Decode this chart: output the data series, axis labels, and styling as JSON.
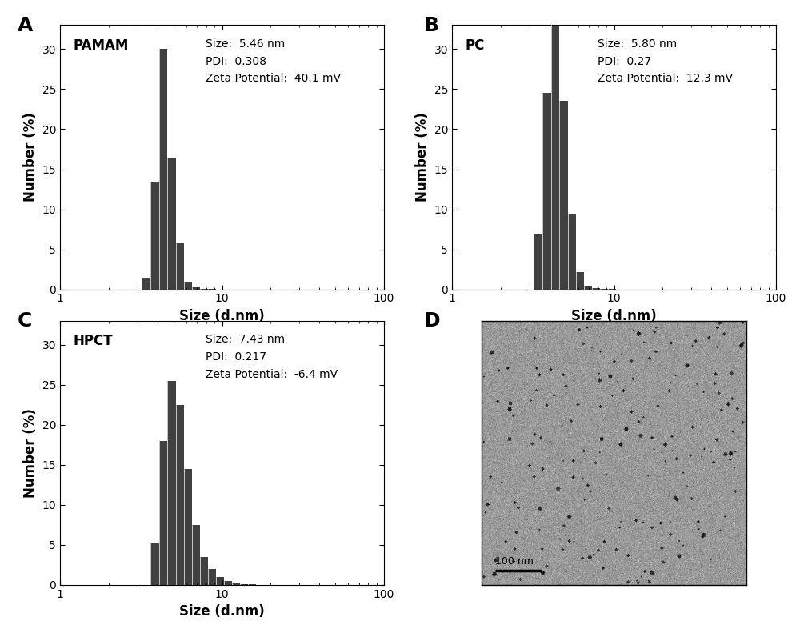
{
  "panel_A": {
    "label": "A",
    "title": "PAMAM",
    "size": "5.46 nm",
    "pdi": "0.308",
    "zeta": "40.1 mV",
    "bar_lefts": [
      3.2,
      3.6,
      4.1,
      4.6,
      5.2,
      5.8,
      6.5,
      7.3,
      8.2
    ],
    "bar_rights": [
      3.6,
      4.1,
      4.6,
      5.2,
      5.8,
      6.5,
      7.3,
      8.2,
      9.2
    ],
    "bar_heights": [
      1.5,
      13.5,
      30.0,
      16.5,
      5.8,
      1.0,
      0.3,
      0.1,
      0.05
    ],
    "bar_color": "#404040",
    "xlim": [
      1,
      100
    ],
    "ylim": [
      0,
      33
    ],
    "yticks": [
      0,
      5,
      10,
      15,
      20,
      25,
      30
    ],
    "xticks": [
      1,
      10,
      100
    ],
    "xlabel": "Size (d.nm)",
    "ylabel": "Number (%)"
  },
  "panel_B": {
    "label": "B",
    "title": "PC",
    "size": "5.80 nm",
    "pdi": "0.27",
    "zeta": "12.3 mV",
    "bar_lefts": [
      3.2,
      3.6,
      4.1,
      4.6,
      5.2,
      5.8,
      6.5,
      7.3,
      8.2,
      9.2
    ],
    "bar_rights": [
      3.6,
      4.1,
      4.6,
      5.2,
      5.8,
      6.5,
      7.3,
      8.2,
      9.2,
      10.3
    ],
    "bar_heights": [
      7.0,
      24.5,
      33.0,
      23.5,
      9.5,
      2.2,
      0.5,
      0.2,
      0.1,
      0.02
    ],
    "bar_color": "#404040",
    "xlim": [
      1,
      100
    ],
    "ylim": [
      0,
      33
    ],
    "yticks": [
      0,
      5,
      10,
      15,
      20,
      25,
      30
    ],
    "xticks": [
      1,
      10,
      100
    ],
    "xlabel": "Size (d.nm)",
    "ylabel": "Number (%)"
  },
  "panel_C": {
    "label": "C",
    "title": "HPCT",
    "size": "7.43 nm",
    "pdi": "0.217",
    "zeta": "-6.4 mV",
    "bar_lefts": [
      3.6,
      4.1,
      4.6,
      5.2,
      5.8,
      6.5,
      7.3,
      8.2,
      9.2,
      10.3,
      11.5,
      12.9,
      14.5,
      16.2,
      18.2,
      20.4
    ],
    "bar_rights": [
      4.1,
      4.6,
      5.2,
      5.8,
      6.5,
      7.3,
      8.2,
      9.2,
      10.3,
      11.5,
      12.9,
      14.5,
      16.2,
      18.2,
      20.4,
      22.9
    ],
    "bar_heights": [
      5.2,
      18.0,
      25.5,
      22.5,
      14.5,
      7.5,
      3.5,
      2.0,
      1.0,
      0.5,
      0.2,
      0.1,
      0.05,
      0.02,
      0.01,
      0.005
    ],
    "bar_color": "#404040",
    "xlim": [
      1,
      100
    ],
    "ylim": [
      0,
      33
    ],
    "yticks": [
      0,
      5,
      10,
      15,
      20,
      25,
      30
    ],
    "xticks": [
      1,
      10,
      100
    ],
    "xlabel": "Size (d.nm)",
    "ylabel": "Number (%)"
  },
  "figure_bg": "#ffffff",
  "label_fontsize": 18,
  "title_fontsize": 12,
  "annotation_fontsize": 10,
  "axis_fontsize": 12,
  "tick_fontsize": 10
}
